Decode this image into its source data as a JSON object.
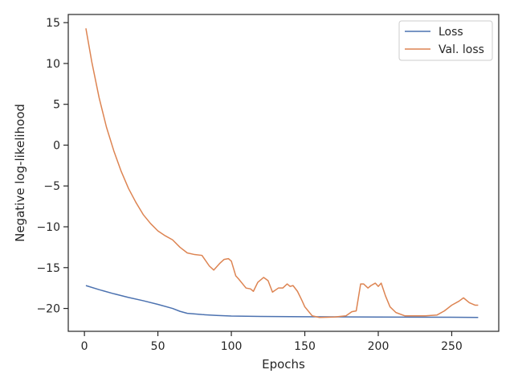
{
  "chart_data": {
    "type": "line",
    "xlabel": "Epochs",
    "ylabel": "Negative log-likelihood",
    "xlim": [
      -11,
      282
    ],
    "ylim": [
      -22.8,
      16
    ],
    "xticks": [
      0,
      50,
      100,
      150,
      200,
      250
    ],
    "yticks": [
      15,
      10,
      5,
      0,
      -5,
      -10,
      -15,
      -20
    ],
    "grid": false,
    "legend_position": "top-right",
    "series": [
      {
        "name": "Loss",
        "color": "#4c72b0",
        "x": [
          1,
          10,
          20,
          30,
          40,
          50,
          60,
          65,
          70,
          80,
          90,
          100,
          120,
          150,
          200,
          250,
          268
        ],
        "y": [
          -17.2,
          -17.7,
          -18.2,
          -18.65,
          -19.05,
          -19.5,
          -20.0,
          -20.35,
          -20.6,
          -20.75,
          -20.85,
          -20.93,
          -20.98,
          -21.02,
          -21.05,
          -21.08,
          -21.1
        ]
      },
      {
        "name": "Val. loss",
        "color": "#dd8452",
        "x": [
          1,
          5,
          10,
          15,
          20,
          25,
          30,
          35,
          40,
          45,
          50,
          55,
          60,
          65,
          70,
          75,
          80,
          85,
          88,
          92,
          95,
          98,
          100,
          103,
          105,
          110,
          113,
          115,
          118,
          122,
          125,
          128,
          132,
          135,
          138,
          140,
          142,
          145,
          148,
          150,
          155,
          160,
          170,
          178,
          182,
          185,
          188,
          190,
          193,
          195,
          198,
          200,
          202,
          205,
          208,
          212,
          218,
          225,
          232,
          240,
          245,
          250,
          255,
          258,
          262,
          266,
          268
        ],
        "y": [
          14.3,
          10.2,
          5.8,
          2.2,
          -0.7,
          -3.2,
          -5.3,
          -7.0,
          -8.5,
          -9.6,
          -10.5,
          -11.1,
          -11.6,
          -12.5,
          -13.2,
          -13.4,
          -13.5,
          -14.8,
          -15.3,
          -14.5,
          -14.0,
          -13.9,
          -14.2,
          -16.0,
          -16.4,
          -17.5,
          -17.6,
          -17.9,
          -16.8,
          -16.2,
          -16.6,
          -18.0,
          -17.5,
          -17.5,
          -17.0,
          -17.3,
          -17.2,
          -17.9,
          -19.0,
          -19.8,
          -20.9,
          -21.1,
          -21.05,
          -20.9,
          -20.4,
          -20.3,
          -17.0,
          -17.0,
          -17.5,
          -17.2,
          -16.9,
          -17.3,
          -16.9,
          -18.5,
          -19.8,
          -20.5,
          -20.9,
          -20.9,
          -20.9,
          -20.8,
          -20.3,
          -19.6,
          -19.1,
          -18.7,
          -19.3,
          -19.6,
          -19.6
        ]
      }
    ]
  }
}
